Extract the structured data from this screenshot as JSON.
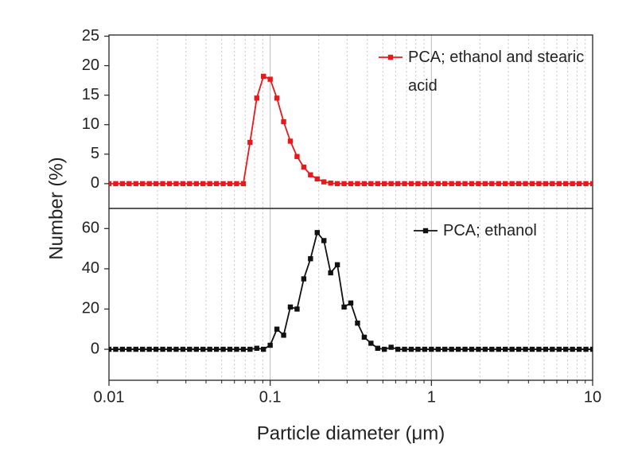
{
  "chart_data": {
    "type": "line",
    "xlabel": "Particle diameter (μm)",
    "ylabel": "Number (%)",
    "xscale": "log",
    "xlim": [
      0.01,
      10
    ],
    "xticks": [
      0.01,
      0.1,
      1,
      10
    ],
    "xminor": [
      0.02,
      0.03,
      0.04,
      0.05,
      0.06,
      0.07,
      0.08,
      0.09,
      0.2,
      0.3,
      0.4,
      0.5,
      0.6,
      0.7,
      0.8,
      0.9,
      2,
      3,
      4,
      5,
      6,
      7,
      8,
      9
    ],
    "legend": "upper right",
    "x": [
      0.01,
      0.011007,
      0.012115,
      0.013335,
      0.014678,
      0.016156,
      0.017783,
      0.019573,
      0.021544,
      0.023714,
      0.026102,
      0.028731,
      0.031623,
      0.034807,
      0.038312,
      0.04217,
      0.046416,
      0.05109,
      0.056234,
      0.061897,
      0.068129,
      0.074989,
      0.08254,
      0.090852,
      0.1,
      0.11007,
      0.12115,
      0.13335,
      0.14678,
      0.16156,
      0.17783,
      0.19573,
      0.21544,
      0.23714,
      0.26102,
      0.28731,
      0.31623,
      0.34807,
      0.38312,
      0.4217,
      0.46416,
      0.5109,
      0.56234,
      0.61897,
      0.68129,
      0.74989,
      0.8254,
      0.90852,
      1,
      1.1007,
      1.2115,
      1.3335,
      1.4678,
      1.6156,
      1.7783,
      1.9573,
      2.1544,
      2.3714,
      2.6102,
      2.8731,
      3.1623,
      3.4807,
      3.8312,
      4.217,
      4.6416,
      5.109,
      5.6234,
      6.1897,
      6.8129,
      7.4989,
      8.254,
      9.0852,
      10
    ],
    "panels": [
      {
        "ylim": [
          -4.2,
          25.2
        ],
        "yticks": [
          0,
          5,
          10,
          15,
          20,
          25
        ],
        "series": [
          {
            "name": "PCA; ethanol and stearic acid",
            "color": "#e8191c",
            "values": [
              0,
              0,
              0,
              0,
              0,
              0,
              0,
              0,
              0,
              0,
              0,
              0,
              0,
              0,
              0,
              0,
              0,
              0,
              0,
              0,
              0,
              7,
              14.5,
              18.2,
              17.7,
              14.5,
              10.5,
              7.2,
              4.6,
              2.8,
              1.5,
              0.8,
              0.3,
              0.1,
              0,
              0,
              0,
              0,
              0,
              0,
              0,
              0,
              0,
              0,
              0,
              0,
              0,
              0,
              0,
              0,
              0,
              0,
              0,
              0,
              0,
              0,
              0,
              0,
              0,
              0,
              0,
              0,
              0,
              0,
              0,
              0,
              0,
              0,
              0,
              0,
              0,
              0,
              0
            ]
          }
        ]
      },
      {
        "ylim": [
          -15.4,
          70
        ],
        "yticks": [
          0,
          20,
          40,
          60
        ],
        "series": [
          {
            "name": "PCA; ethanol",
            "color": "#111111",
            "values": [
              0,
              0,
              0,
              0,
              0,
              0,
              0,
              0,
              0,
              0,
              0,
              0,
              0,
              0,
              0,
              0,
              0,
              0,
              0,
              0,
              0,
              0,
              0.5,
              0,
              2,
              10,
              7,
              21,
              20,
              35,
              45,
              58,
              54,
              38,
              42,
              21,
              23,
              13,
              6,
              3,
              0.5,
              0,
              1,
              0,
              0,
              0,
              0,
              0,
              0,
              0,
              0,
              0,
              0,
              0,
              0,
              0,
              0,
              0,
              0,
              0,
              0,
              0,
              0,
              0,
              0,
              0,
              0,
              0,
              0,
              0,
              0,
              0,
              0
            ]
          }
        ]
      }
    ]
  }
}
